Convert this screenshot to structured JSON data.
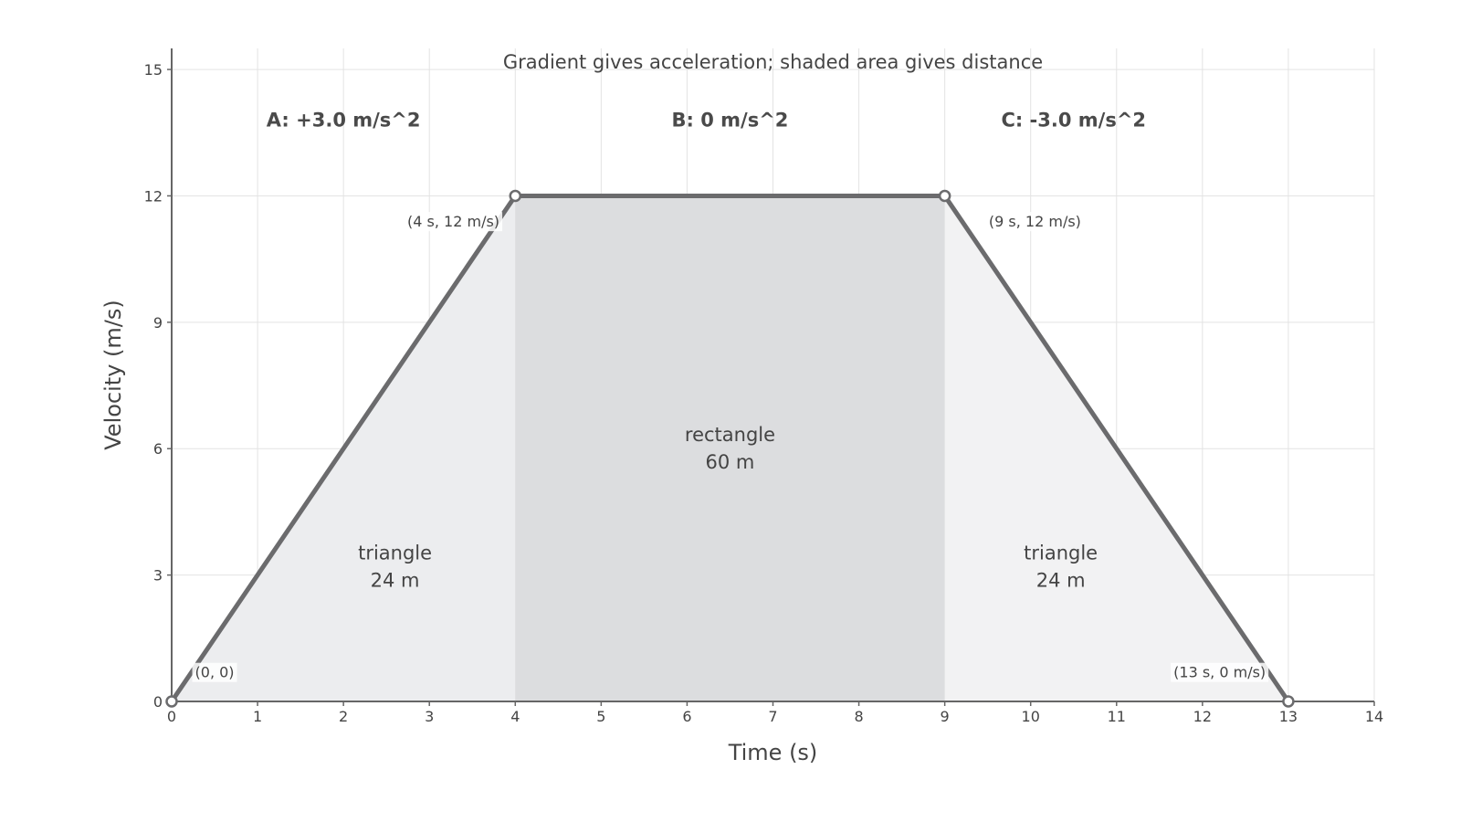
{
  "chart_data": {
    "type": "area",
    "title": "Gradient gives acceleration; shaded area gives distance",
    "xlabel": "Time (s)",
    "ylabel": "Velocity (m/s)",
    "xlim": [
      0,
      14
    ],
    "ylim": [
      0,
      15.5
    ],
    "xticks": [
      0,
      1,
      2,
      3,
      4,
      5,
      6,
      7,
      8,
      9,
      10,
      11,
      12,
      13,
      14
    ],
    "yticks": [
      0,
      3,
      6,
      9,
      12,
      15
    ],
    "grid": true,
    "series": [
      {
        "x": [
          0,
          4,
          9,
          13
        ],
        "y": [
          0,
          12,
          12,
          0
        ]
      }
    ],
    "regions": [
      {
        "name": "A",
        "x_start": 0,
        "x_end": 4,
        "shape": "triangle",
        "label": [
          "triangle",
          "24 m"
        ],
        "label_at": [
          2.6,
          3.2
        ],
        "fill": "#ecedef"
      },
      {
        "name": "B",
        "x_start": 4,
        "x_end": 9,
        "shape": "rectangle",
        "label": [
          "rectangle",
          "60 m"
        ],
        "label_at": [
          6.5,
          6.0
        ],
        "fill": "#dcdddf"
      },
      {
        "name": "C",
        "x_start": 9,
        "x_end": 13,
        "shape": "triangle",
        "label": [
          "triangle",
          "24 m"
        ],
        "label_at": [
          10.35,
          3.2
        ],
        "fill": "#f2f2f3"
      }
    ],
    "phase_labels": [
      {
        "text": "A: +3.0 m/s^2",
        "at": [
          2.0,
          13.8
        ]
      },
      {
        "text": "B: 0 m/s^2",
        "at": [
          6.5,
          13.8
        ]
      },
      {
        "text": "C: -3.0 m/s^2",
        "at": [
          10.5,
          13.8
        ]
      }
    ],
    "point_labels": [
      {
        "text": "(0, 0)",
        "at": [
          0.5,
          0.7
        ]
      },
      {
        "text": "(4 s, 12 m/s)",
        "at": [
          3.28,
          11.4
        ]
      },
      {
        "text": "(9 s, 12 m/s)",
        "at": [
          10.05,
          11.4
        ]
      },
      {
        "text": "(13 s, 0 m/s)",
        "at": [
          12.2,
          0.7
        ]
      }
    ],
    "colors": {
      "line": "#6b6b6d",
      "axis": "#666666",
      "grid": "#e3e3e3",
      "text": "#444444"
    }
  }
}
